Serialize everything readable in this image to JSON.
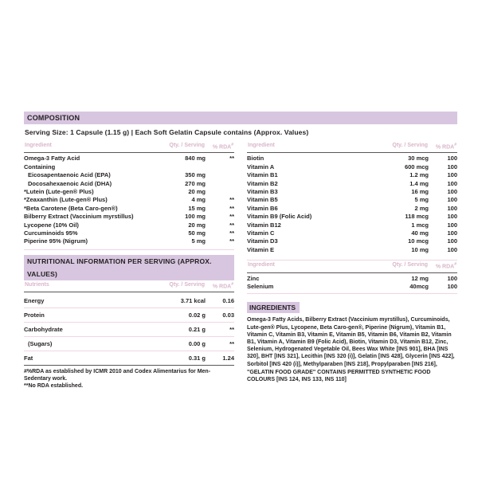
{
  "composition": {
    "section_title": "COMPOSITION",
    "serving_line": "Serving Size: 1 Capsule (1.15 g) | Each Soft Gelatin Capsule contains (Approx. Values)",
    "header": {
      "ingredient": "Ingredient",
      "qty": "Qty. / Serving",
      "rda": "% RDA",
      "rda_sup": "#"
    },
    "left_rows": [
      {
        "name": "Omega-3 Fatty Acid",
        "qty": "840 mg",
        "rda": "**"
      },
      {
        "name": "Containing",
        "qty": "",
        "rda": ""
      },
      {
        "name": "Eicosapentaenoic Acid (EPA)",
        "qty": "350 mg",
        "rda": "",
        "indent": true
      },
      {
        "name": "Docosahexaenoic Acid (DHA)",
        "qty": "270 mg",
        "rda": "",
        "indent": true
      },
      {
        "name": "*Lutein (Lute-gen® Plus)",
        "qty": "20 mg",
        "rda": ""
      },
      {
        "name": "*Zeaxanthin (Lute-gen® Plus)",
        "qty": "4 mg",
        "rda": "**"
      },
      {
        "name": "*Beta Carotene (Beta Caro-gen®)",
        "qty": "15 mg",
        "rda": "**"
      },
      {
        "name": "Bilberry Extract (Vaccinium myrstillus)",
        "qty": "100 mg",
        "rda": "**"
      },
      {
        "name": "Lycopene (10% Oil)",
        "qty": "20 mg",
        "rda": "**"
      },
      {
        "name": "Curcuminoids 95%",
        "qty": "50 mg",
        "rda": "**"
      },
      {
        "name": "Piperine 95% (Nigrum)",
        "qty": "5 mg",
        "rda": "**"
      }
    ],
    "right_rows": [
      {
        "name": "Biotin",
        "qty": "30 mcg",
        "rda": "100"
      },
      {
        "name": "Vitamin A",
        "qty": "600 mcg",
        "rda": "100"
      },
      {
        "name": "Vitamin B1",
        "qty": "1.2 mg",
        "rda": "100"
      },
      {
        "name": "Vitamin B2",
        "qty": "1.4 mg",
        "rda": "100"
      },
      {
        "name": "Vitamin B3",
        "qty": "16 mg",
        "rda": "100"
      },
      {
        "name": "Vitamin B5",
        "qty": "5 mg",
        "rda": "100"
      },
      {
        "name": "Vitamin B6",
        "qty": "2 mg",
        "rda": "100"
      },
      {
        "name": "Vitamin B9 (Folic Acid)",
        "qty": "118 mcg",
        "rda": "100"
      },
      {
        "name": "Vitamin B12",
        "qty": "1 mcg",
        "rda": "100"
      },
      {
        "name": "Vitamin C",
        "qty": "40 mg",
        "rda": "100"
      },
      {
        "name": "Vitamin D3",
        "qty": "10 mcg",
        "rda": "100"
      },
      {
        "name": "Vitamin E",
        "qty": "10 mg",
        "rda": "100"
      }
    ],
    "mineral_rows": [
      {
        "name": "Zinc",
        "qty": "12 mg",
        "rda": "100"
      },
      {
        "name": "Selenium",
        "qty": "40mcg",
        "rda": "100"
      }
    ]
  },
  "nutrition": {
    "section_title": "NUTRITIONAL INFORMATION PER SERVING (APPROX. VALUES)",
    "header": {
      "nutrients": "Nutrients",
      "qty": "Qty. / Serving",
      "rda": "% RDA",
      "rda_sup": "#"
    },
    "rows": [
      {
        "name": "Energy",
        "qty": "3.71 kcal",
        "rda": "0.16"
      },
      {
        "name": "Protein",
        "qty": "0.02 g",
        "rda": "0.03"
      },
      {
        "name": "Carbohydrate",
        "qty": "0.21 g",
        "rda": "**"
      },
      {
        "name": "(Sugars)",
        "qty": "0.00 g",
        "rda": "**",
        "indent": true
      },
      {
        "name": "Fat",
        "qty": "0.31 g",
        "rda": "1.24"
      }
    ],
    "footnotes": [
      "#%RDA as established by ICMR 2010 and Codex Alimentarius for Men-Sedentary work.",
      "**No RDA established."
    ]
  },
  "ingredients": {
    "section_title": "INGREDIENTS",
    "paragraph": "Omega-3 Fatty Acids, Bilberry Extract (Vaccinium myrstillus), Curcuminoids, Lute-gen® Plus, Lycopene, Beta Caro-gen®, Piperine (Nigrum), Vitamin B1, Vitamin C, Vitamin B3, Vitamin E, Vitamin B5, Vitamin B6, Vitamin B2, Vitamin B1, Vitamin A, Vitamin B9 (Folic Acid), Biotin, Vitamin D3, Vitamin B12, Zinc, Selenium, Hydrogenated Vegetable Oil, Bees Wax White [INS 901], BHA [INS 320], BHT [INS 321], Lecithin [INS 320 (i)], Gelatin [INS 428], Glycerin [INS 422], Sorbitol [INS 420 (i)], Methylparaben [INS 218], Propylparaben [INS 216],",
    "gelatin_note": "\"GELATIN FOOD GRADE\" CONTAINS PERMITTED SYNTHETIC FOOD COLOURS [INS 124, INS 133, INS 110]"
  },
  "colors": {
    "section_bar": "#d8c6e0",
    "header_text": "#d9b6c9",
    "separator_pink": "#f0d5e3",
    "separator_dark": "#5a5657",
    "body_text": "#262223"
  }
}
